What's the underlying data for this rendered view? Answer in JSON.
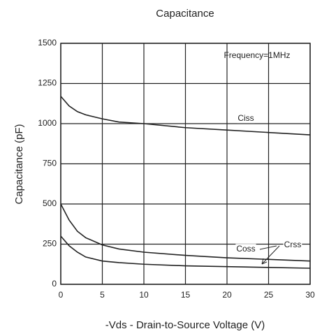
{
  "chart_data": {
    "type": "line",
    "title": "Capacitance",
    "x_label": "-Vds - Drain-to-Source Voltage (V)",
    "y_label": "Capacitance (pF)",
    "annotation": "Frequency=1MHz",
    "x": [
      0,
      1,
      2,
      3,
      5,
      7,
      10,
      15,
      20,
      25,
      30
    ],
    "series": [
      {
        "name": "Ciss",
        "color": "#222222",
        "values": [
          1170,
          1110,
          1075,
          1055,
          1030,
          1010,
          1000,
          975,
          960,
          945,
          930
        ]
      },
      {
        "name": "Coss",
        "color": "#222222",
        "values": [
          500,
          400,
          330,
          290,
          245,
          220,
          200,
          180,
          165,
          155,
          145
        ]
      },
      {
        "name": "Crss",
        "color": "#222222",
        "values": [
          300,
          240,
          200,
          170,
          145,
          135,
          125,
          115,
          110,
          105,
          100
        ]
      }
    ],
    "xlim": [
      0,
      30
    ],
    "xticks": [
      0,
      5,
      10,
      15,
      20,
      25,
      30
    ],
    "ylim": [
      0,
      1500
    ],
    "yticks": [
      0,
      250,
      500,
      750,
      1000,
      1250,
      1500
    ],
    "grid": true
  }
}
